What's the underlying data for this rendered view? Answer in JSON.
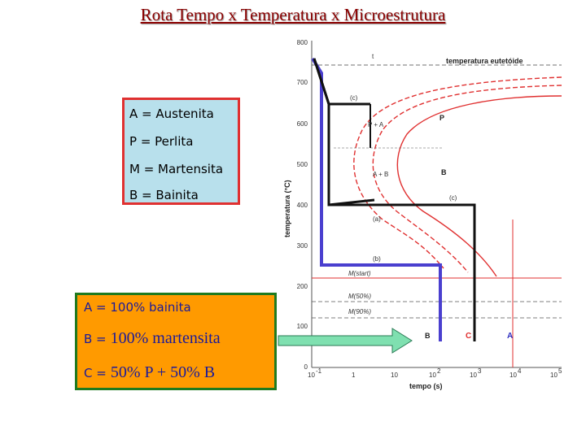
{
  "title": "Rota Tempo x Temperatura x Microestrutura",
  "legend": [
    "A = Austenita",
    "P = Perlita",
    "M = Martensita",
    "B = Bainita"
  ],
  "results": {
    "line1": "A = 100% bainita",
    "line2_lead": "B =",
    "line2_text": " 100% martensita",
    "line3_lead": "C =",
    "line3_text": " 50% P + 50% B"
  },
  "diagram": {
    "ylabel": "temperatura (°C)",
    "xlabel": "tempo (s)",
    "y_ticks": [
      "800",
      "700",
      "600",
      "500",
      "400",
      "300",
      "200",
      "100",
      "0"
    ],
    "x_ticks": [
      "10",
      "1",
      "10",
      "10",
      "10",
      "10",
      "10"
    ],
    "x_tick_exponents": [
      "-1",
      "",
      "",
      "2",
      "3",
      "4",
      "5"
    ],
    "eutectoid_label": "temperatura eutetóide",
    "label_t1": "t",
    "label_c_top": "(c)",
    "label_pa": "P + A",
    "label_p": "P",
    "label_ab": "A + B",
    "label_b": "B",
    "label_c_mid": "(c)",
    "label_a": "(a)",
    "label_b_curve": "(b)",
    "label_mstart": "M(start)",
    "label_m50": "M(50%)",
    "label_m90": "M(90%)",
    "end_b": "B",
    "end_c": "C",
    "end_a": "A",
    "colors": {
      "path_a": "#111111",
      "path_b": "#4a3fcf",
      "path_c": "#111111",
      "curves": "#e03030",
      "arrow": "#7fe0b0"
    }
  }
}
